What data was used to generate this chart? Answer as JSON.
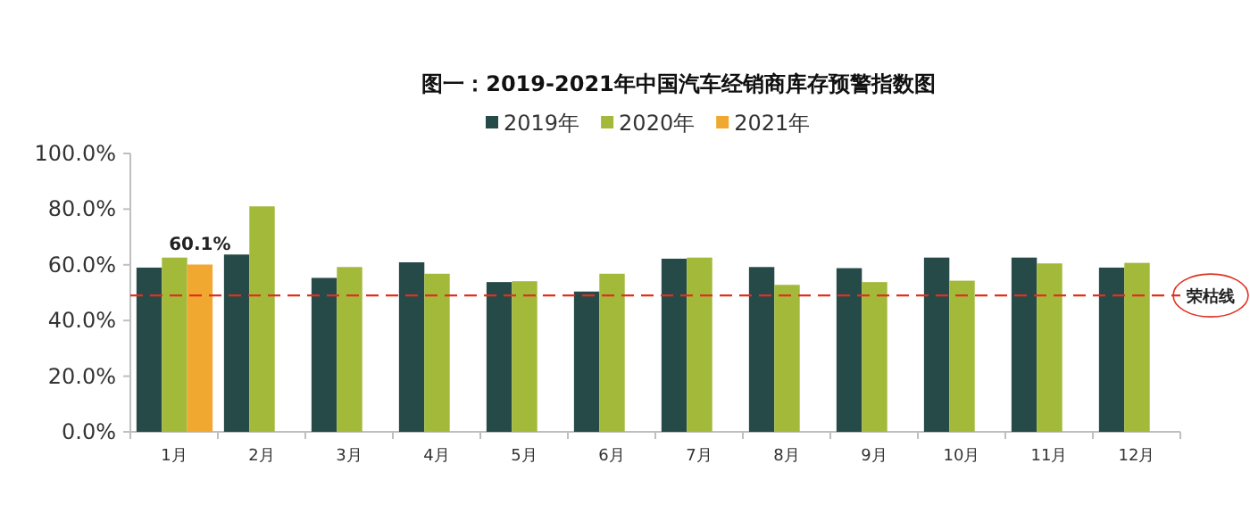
{
  "chart_data": {
    "type": "bar",
    "title": "图一：2019-2021年中国汽车经销商库存预警指数图",
    "categories": [
      "1月",
      "2月",
      "3月",
      "4月",
      "5月",
      "6月",
      "7月",
      "8月",
      "9月",
      "10月",
      "11月",
      "12月"
    ],
    "series": [
      {
        "name": "2019年",
        "color": "#264a48",
        "values": [
          59.0,
          63.7,
          55.3,
          60.9,
          53.8,
          50.4,
          62.2,
          59.2,
          58.8,
          62.6,
          62.6,
          59.0
        ]
      },
      {
        "name": "2020年",
        "color": "#a3b93a",
        "values": [
          62.6,
          81.0,
          59.2,
          56.8,
          54.1,
          56.8,
          62.6,
          52.8,
          53.8,
          54.3,
          60.5,
          60.7
        ]
      },
      {
        "name": "2021年",
        "color": "#f0a830",
        "values": [
          60.1,
          null,
          null,
          null,
          null,
          null,
          null,
          null,
          null,
          null,
          null,
          null
        ],
        "value_labels": [
          "60.1%",
          null,
          null,
          null,
          null,
          null,
          null,
          null,
          null,
          null,
          null,
          null
        ]
      }
    ],
    "ylim": [
      0,
      100
    ],
    "yticks": [
      {
        "value": 0,
        "label": "0.0%"
      },
      {
        "value": 20,
        "label": "20.0%"
      },
      {
        "value": 40,
        "label": "40.0%"
      },
      {
        "value": 60,
        "label": "60.0%"
      },
      {
        "value": 80,
        "label": "80.0%"
      },
      {
        "value": 100,
        "label": "100.0%"
      }
    ],
    "legend": "top",
    "ref_lines": [
      {
        "axis": "y",
        "value": 49,
        "label": "荣枯线",
        "color": "#e03020",
        "line_style": "dashed"
      }
    ]
  }
}
